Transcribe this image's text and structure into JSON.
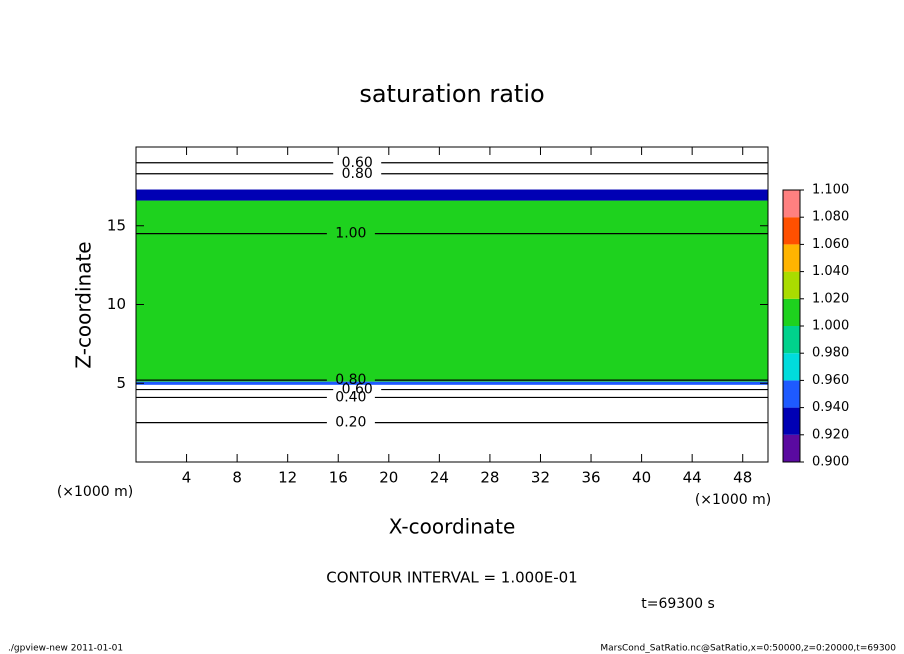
{
  "chart_data": {
    "type": "contour",
    "title": "saturation ratio",
    "xlabel": "X-coordinate",
    "ylabel": "Z-coordinate",
    "xunit": "(×1000 m)",
    "yunit": "(×1000 m)",
    "xlim": [
      0,
      50
    ],
    "ylim": [
      0,
      20
    ],
    "xticks": [
      4,
      8,
      12,
      16,
      20,
      24,
      28,
      32,
      36,
      40,
      44,
      48
    ],
    "yticks": [
      5,
      10,
      15
    ],
    "levels": [
      {
        "value": 0.9,
        "label": "0.900"
      },
      {
        "value": 0.92,
        "label": "0.920"
      },
      {
        "value": 0.94,
        "label": "0.940"
      },
      {
        "value": 0.96,
        "label": "0.960"
      },
      {
        "value": 0.98,
        "label": "0.980"
      },
      {
        "value": 1.0,
        "label": "1.000"
      },
      {
        "value": 1.02,
        "label": "1.020"
      },
      {
        "value": 1.04,
        "label": "1.040"
      },
      {
        "value": 1.06,
        "label": "1.060"
      },
      {
        "value": 1.08,
        "label": "1.080"
      },
      {
        "value": 1.1,
        "label": "1.100"
      }
    ],
    "colors": [
      "#5a0aa0",
      "#0000b4",
      "#1e5aff",
      "#00dcdc",
      "#00d28c",
      "#1ed21e",
      "#aadc00",
      "#ffb400",
      "#ff5000",
      "#ff8080"
    ],
    "layers": [
      {
        "zlim": [
          5.1,
          16.6
        ],
        "value": 1.005
      },
      {
        "zlim": [
          4.9,
          5.1
        ],
        "value": 0.95
      },
      {
        "zlim": [
          16.6,
          17.3
        ],
        "value": 0.93
      }
    ],
    "contours": [
      {
        "level": {
          "value": 0.2,
          "label": "0.20"
        },
        "z": 2.5,
        "x": 17
      },
      {
        "level": {
          "value": 0.4,
          "label": "0.40"
        },
        "z": 4.1,
        "x": 17
      },
      {
        "level": {
          "value": 0.6,
          "label": "0.60"
        },
        "z": 4.6,
        "x": 17.5
      },
      {
        "level": {
          "value": 0.8,
          "label": "0.80"
        },
        "z": 5.2,
        "x": 17
      },
      {
        "level": {
          "value": 0.8,
          "label": "0.80"
        },
        "z": 18.3,
        "x": 17.5
      },
      {
        "level": {
          "value": 0.6,
          "label": "0.60"
        },
        "z": 19.0,
        "x": 17.5
      },
      {
        "level": {
          "value": 1.0,
          "label": "1.00"
        },
        "z": 14.5,
        "x": 17
      }
    ],
    "annotations": [
      "CONTOUR INTERVAL = 1.000E-01",
      "t=69300 s"
    ],
    "footer_left": "./gpview-new  2011-01-01",
    "footer_right": "MarsCond_SatRatio.nc@SatRatio,x=0:50000,z=0:20000,t=69300"
  }
}
